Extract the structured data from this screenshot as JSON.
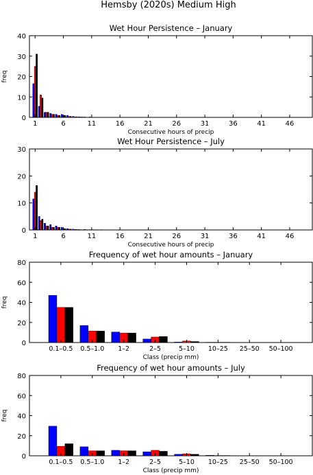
{
  "suptitle": "Hemsby (2020s) Medium High",
  "colors": {
    "series1": "#0000ff",
    "series2": "#ff0000",
    "series3": "#000000"
  },
  "chart_data": [
    {
      "type": "bar",
      "title": "Wet Hour Persistence – January",
      "xlabel": "Consecutive hours of precip",
      "ylabel": "freq",
      "xlim": [
        0,
        50
      ],
      "ylim": [
        0,
        40
      ],
      "xticks": [
        "1",
        "6",
        "11",
        "16",
        "21",
        "26",
        "31",
        "36",
        "41",
        "46"
      ],
      "yticks": [
        "0",
        "10",
        "20",
        "30",
        "40"
      ],
      "x": [
        1,
        2,
        3,
        4,
        5,
        6,
        7,
        8,
        9,
        10,
        11,
        12,
        13,
        14,
        15,
        16
      ],
      "series": [
        {
          "values": [
            16.5,
            5.5,
            2.5,
            2,
            1.5,
            1.5,
            1,
            0.5,
            0.3,
            0.2,
            0.2,
            0.1,
            0.1,
            0.1,
            0,
            0
          ]
        },
        {
          "values": [
            25,
            11,
            2.5,
            1.5,
            1,
            1,
            0.5,
            0.3,
            0.2,
            0.1,
            0.1,
            0.1,
            0,
            0,
            0,
            0
          ]
        },
        {
          "values": [
            31,
            9.5,
            2.5,
            1.5,
            1,
            1,
            0.5,
            0.3,
            0.2,
            0.1,
            0.1,
            0.1,
            0,
            0,
            0,
            0
          ]
        }
      ]
    },
    {
      "type": "bar",
      "title": "Wet Hour Persistence – July",
      "xlabel": "Consecutive hours of precip",
      "ylabel": "",
      "xlim": [
        0,
        50
      ],
      "ylim": [
        0,
        30
      ],
      "xticks": [
        "1",
        "6",
        "11",
        "16",
        "21",
        "26",
        "31",
        "36",
        "41",
        "46"
      ],
      "yticks": [
        "0",
        "10",
        "20",
        "30"
      ],
      "x": [
        1,
        2,
        3,
        4,
        5,
        6,
        7,
        8,
        9,
        10,
        11,
        12,
        13
      ],
      "series": [
        {
          "values": [
            11.5,
            5,
            2.5,
            2,
            1.5,
            1,
            0.5,
            0.3,
            0.2,
            0.2,
            0.1,
            0.1,
            0.1
          ]
        },
        {
          "values": [
            14,
            3.5,
            1.5,
            1,
            1,
            0.5,
            0.3,
            0.2,
            0.1,
            0.1,
            0.1,
            0.1,
            0
          ]
        },
        {
          "values": [
            16.5,
            4,
            1.5,
            1,
            1,
            0.5,
            0.3,
            0.2,
            0.1,
            0.1,
            0.1,
            0,
            0
          ]
        }
      ]
    },
    {
      "type": "bar",
      "title": "Frequency of wet hour amounts – January",
      "xlabel": "Class (precip mm)",
      "ylabel": "freq",
      "ylim": [
        0,
        80
      ],
      "yticks": [
        "0",
        "20",
        "40",
        "60",
        "80"
      ],
      "categories": [
        "0.1–0.5",
        "0.5–1.0",
        "1–2",
        "2–5",
        "5–10",
        "10–25",
        "25–50",
        "50–100"
      ],
      "series": [
        {
          "values": [
            47,
            17,
            10.5,
            3.5,
            0.5,
            0.3,
            0,
            0
          ]
        },
        {
          "values": [
            35,
            11.5,
            9.5,
            5.5,
            1.5,
            0.3,
            0,
            0
          ]
        },
        {
          "values": [
            35,
            11.5,
            9.5,
            6,
            1,
            0.3,
            0,
            0
          ]
        }
      ]
    },
    {
      "type": "bar",
      "title": "Frequency of wet hour amounts – July",
      "xlabel": "Class (precip mm)",
      "ylabel": "freq",
      "ylim": [
        0,
        80
      ],
      "yticks": [
        "0",
        "20",
        "40",
        "60",
        "80"
      ],
      "categories": [
        "0.1–0.5",
        "0.5–1.0",
        "1–2",
        "2–5",
        "5–10",
        "10–25",
        "25–50",
        "50–100"
      ],
      "series": [
        {
          "values": [
            29.5,
            9,
            5.5,
            4,
            1.5,
            0.5,
            0,
            0
          ]
        },
        {
          "values": [
            9.5,
            5,
            5,
            5.5,
            2,
            0.3,
            0,
            0
          ]
        },
        {
          "values": [
            12,
            5,
            5,
            4.5,
            1.5,
            0.3,
            0,
            0
          ]
        }
      ]
    }
  ]
}
